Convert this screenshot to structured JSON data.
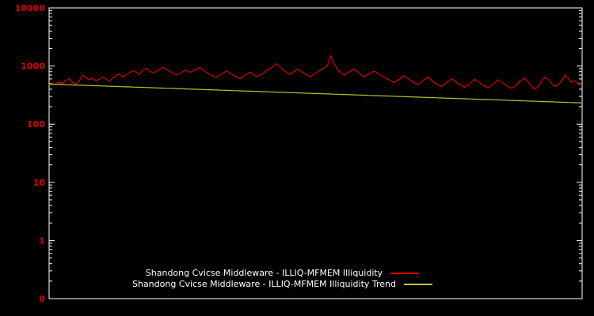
{
  "chart_data": {
    "type": "line",
    "title": "",
    "x_axis": {
      "label": "",
      "tick_labels": []
    },
    "y_axis": {
      "label": "",
      "scale": "log",
      "tick_labels": [
        "10000",
        "1000",
        "100",
        "10",
        "1",
        "0"
      ],
      "range": [
        0.1,
        10000
      ]
    },
    "legend": {
      "position": "bottom-center"
    },
    "series": [
      {
        "name": "Shandong Cvicse Middleware - ILLIQ-MFMEM Illiquidity",
        "color": "#dd0000",
        "values": [
          470,
          510,
          480,
          530,
          500,
          560,
          610,
          520,
          490,
          555,
          700,
          640,
          580,
          625,
          560,
          595,
          650,
          600,
          545,
          615,
          690,
          730,
          650,
          705,
          770,
          830,
          780,
          715,
          860,
          910,
          820,
          755,
          805,
          875,
          950,
          880,
          815,
          755,
          700,
          745,
          805,
          855,
          775,
          825,
          885,
          945,
          860,
          775,
          715,
          675,
          635,
          700,
          765,
          825,
          760,
          695,
          645,
          600,
          665,
          725,
          785,
          720,
          655,
          705,
          765,
          845,
          905,
          1005,
          1100,
          950,
          845,
          775,
          715,
          805,
          885,
          820,
          755,
          695,
          655,
          725,
          785,
          855,
          925,
          1010,
          1500,
          1090,
          895,
          775,
          700,
          760,
          825,
          880,
          795,
          715,
          655,
          705,
          765,
          820,
          755,
          695,
          640,
          595,
          555,
          520,
          565,
          625,
          685,
          620,
          560,
          515,
          480,
          525,
          585,
          645,
          580,
          520,
          478,
          442,
          485,
          545,
          600,
          558,
          502,
          462,
          432,
          472,
          532,
          592,
          542,
          490,
          455,
          422,
          462,
          522,
          582,
          532,
          480,
          442,
          412,
          452,
          512,
          572,
          618,
          522,
          442,
          402,
          452,
          562,
          642,
          582,
          498,
          442,
          482,
          562,
          700,
          610,
          520,
          560,
          480,
          520
        ]
      },
      {
        "name": "Shandong Cvicse Middleware - ILLIQ-MFMEM Illiquidity Trend",
        "color": "#c2c22a",
        "trend_start": 490,
        "trend_end": 232
      }
    ],
    "styles": {
      "background": "#000000",
      "border": "#ffffff",
      "tick_label_color": "#dd0000",
      "legend_text_color": "#ffffff"
    }
  }
}
